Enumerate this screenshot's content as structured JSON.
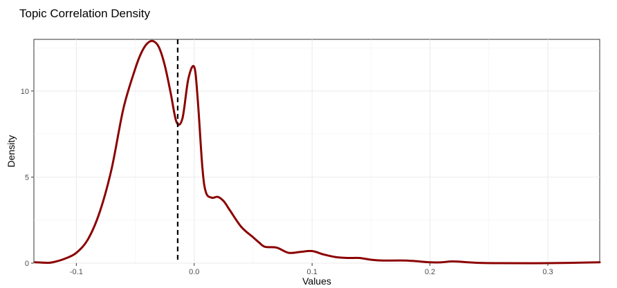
{
  "chart_data": {
    "type": "line",
    "title": "Topic Correlation Density",
    "xlabel": "Values",
    "ylabel": "Density",
    "xlim": [
      -0.136,
      0.344
    ],
    "ylim": [
      0,
      13.0
    ],
    "x_ticks": [
      -0.1,
      0.0,
      0.1,
      0.2,
      0.3
    ],
    "x_tick_labels": [
      "-0.1",
      "0.0",
      "0.1",
      "0.2",
      "0.3"
    ],
    "y_ticks": [
      0,
      5,
      10
    ],
    "y_tick_labels": [
      "0",
      "5",
      "10"
    ],
    "grid": true,
    "legend": "none",
    "reference_line": {
      "x": -0.014,
      "style": "dashed",
      "color": "#000000"
    },
    "series": [
      {
        "color": "#8b0000",
        "x": [
          -0.135,
          -0.125,
          -0.12,
          -0.11,
          -0.1,
          -0.09,
          -0.08,
          -0.07,
          -0.06,
          -0.05,
          -0.045,
          -0.04,
          -0.035,
          -0.03,
          -0.025,
          -0.02,
          -0.015,
          -0.01,
          -0.005,
          0.0,
          0.003,
          0.007,
          0.01,
          0.015,
          0.02,
          0.025,
          0.03,
          0.04,
          0.05,
          0.055,
          0.06,
          0.07,
          0.08,
          0.09,
          0.1,
          0.11,
          0.12,
          0.13,
          0.14,
          0.15,
          0.16,
          0.18,
          0.2,
          0.21,
          0.22,
          0.24,
          0.26,
          0.3,
          0.344
        ],
        "y": [
          0.05,
          0.02,
          0.05,
          0.25,
          0.6,
          1.4,
          3.0,
          5.5,
          9.0,
          11.3,
          12.2,
          12.75,
          12.9,
          12.55,
          11.5,
          9.9,
          8.2,
          8.4,
          10.7,
          11.4,
          9.5,
          5.5,
          4.1,
          3.8,
          3.85,
          3.6,
          3.1,
          2.1,
          1.5,
          1.2,
          0.95,
          0.9,
          0.6,
          0.65,
          0.7,
          0.5,
          0.35,
          0.3,
          0.3,
          0.2,
          0.15,
          0.15,
          0.05,
          0.05,
          0.1,
          0.02,
          0.0,
          0.0,
          0.05
        ]
      }
    ]
  }
}
